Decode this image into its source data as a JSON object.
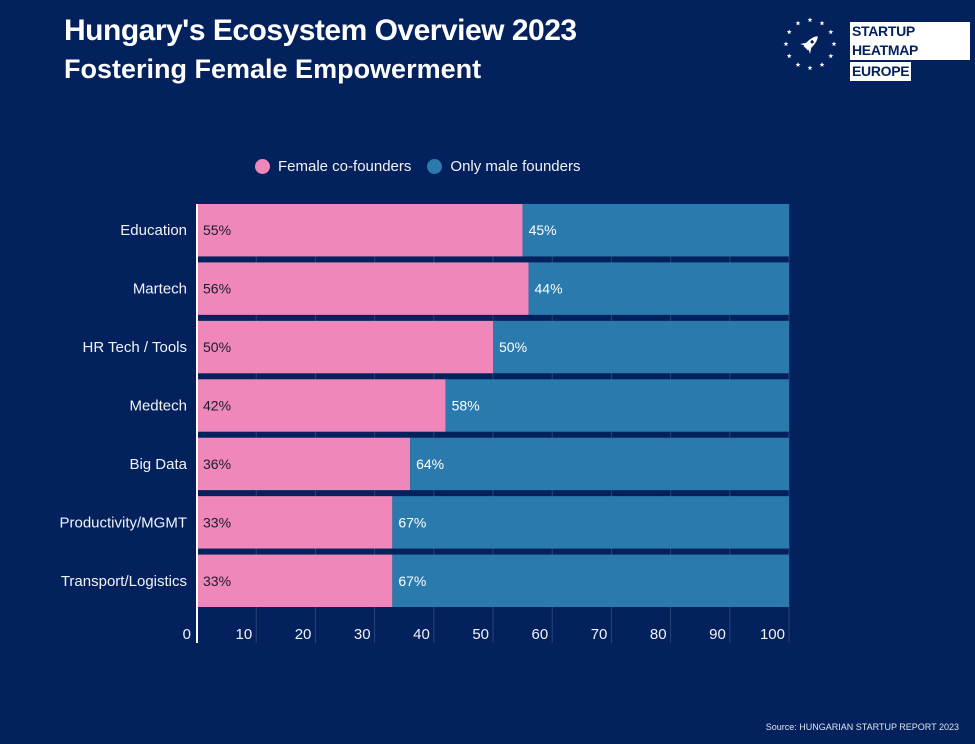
{
  "header": {
    "title": "Hungary's Ecosystem Overview 2023",
    "subtitle": "Fostering Female Empowerment"
  },
  "brand": {
    "line1": "STARTUP HEATMAP",
    "line2": "EUROPE",
    "logo_icon": "rocket-in-star-ring-icon"
  },
  "colors": {
    "background": "#03215c",
    "female": "#f087bb",
    "male": "#2a7aae"
  },
  "source": "Source: HUNGARIAN STARTUP REPORT 2023",
  "chart_data": {
    "type": "bar",
    "orientation": "horizontal",
    "stacked": true,
    "categories": [
      "Education",
      "Martech",
      "HR Tech / Tools",
      "Medtech",
      "Big Data",
      "Productivity/MGMT",
      "Transport/Logistics"
    ],
    "series": [
      {
        "name": "Female co-founders",
        "values": [
          55,
          56,
          50,
          42,
          36,
          33,
          33
        ],
        "labels": [
          "55%",
          "56%",
          "50%",
          "42%",
          "36%",
          "33%",
          "33%"
        ]
      },
      {
        "name": "Only male founders",
        "values": [
          45,
          44,
          50,
          58,
          64,
          67,
          67
        ],
        "labels": [
          "45%",
          "44%",
          "50%",
          "58%",
          "64%",
          "67%",
          "67%"
        ]
      }
    ],
    "xlim": [
      0,
      100
    ],
    "xticks": [
      "0",
      "10",
      "20",
      "30",
      "40",
      "50",
      "60",
      "70",
      "80",
      "90",
      "100"
    ],
    "legend_position": "top",
    "grid": true
  }
}
